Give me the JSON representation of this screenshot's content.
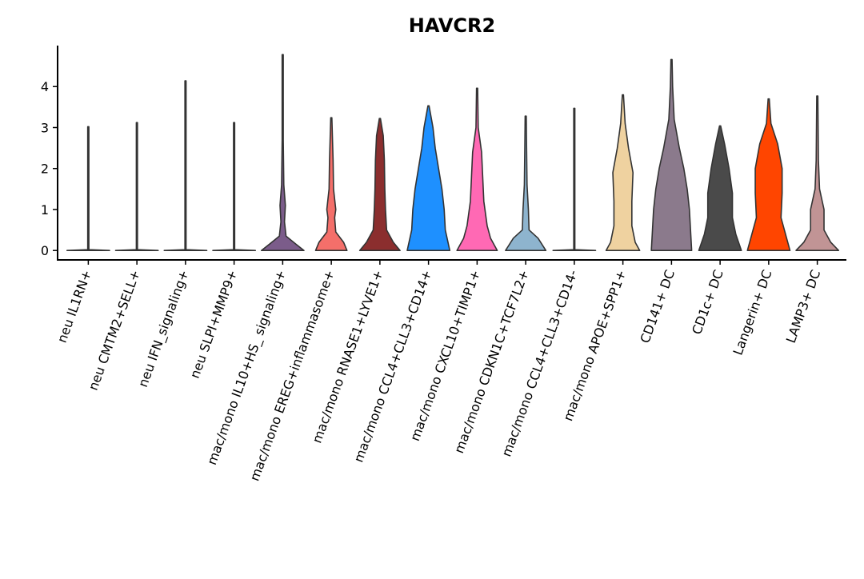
{
  "chart_data": {
    "type": "violin",
    "title": "HAVCR2",
    "ylim": [
      -0.23,
      5.0
    ],
    "yticks": [
      0,
      1,
      2,
      3,
      4
    ],
    "series": [
      {
        "name": "neu IL1RN+",
        "color": "#C8A2C8",
        "density": [
          [
            0,
            0.95
          ],
          [
            0.02,
            0.02
          ],
          [
            3.02,
            0
          ]
        ]
      },
      {
        "name": "neu CMTM2+SELL+",
        "color": "#FFE4B5",
        "density": [
          [
            0,
            0.95
          ],
          [
            0.02,
            0.02
          ],
          [
            3.12,
            0
          ]
        ]
      },
      {
        "name": "neu IFN_signaling+",
        "color": "#FFDAB9",
        "density": [
          [
            0,
            0.95
          ],
          [
            0.02,
            0.02
          ],
          [
            4.14,
            0
          ]
        ]
      },
      {
        "name": "neu SLPI+MMP9+",
        "color": "#A9A9A9",
        "density": [
          [
            0,
            0.95
          ],
          [
            0.02,
            0.02
          ],
          [
            3.12,
            0
          ]
        ]
      },
      {
        "name": "mac/mono IL10+HS_ signaling+",
        "color": "#7B5C8A",
        "density": [
          [
            0,
            0.95
          ],
          [
            0.15,
            0.6
          ],
          [
            0.35,
            0.15
          ],
          [
            0.7,
            0.08
          ],
          [
            1.1,
            0.12
          ],
          [
            1.6,
            0.05
          ],
          [
            2.7,
            0.02
          ],
          [
            4.78,
            0
          ]
        ]
      },
      {
        "name": "mac/mono EREG+inflammasome+",
        "color": "#F46F6A",
        "density": [
          [
            0,
            0.7
          ],
          [
            0.2,
            0.55
          ],
          [
            0.45,
            0.2
          ],
          [
            0.8,
            0.15
          ],
          [
            1.0,
            0.2
          ],
          [
            1.5,
            0.1
          ],
          [
            2.2,
            0.08
          ],
          [
            3.24,
            0
          ]
        ]
      },
      {
        "name": "mac/mono RNASE1+LYVE1+",
        "color": "#8B2E2E",
        "density": [
          [
            0,
            0.9
          ],
          [
            0.2,
            0.6
          ],
          [
            0.5,
            0.3
          ],
          [
            1.0,
            0.25
          ],
          [
            1.5,
            0.22
          ],
          [
            2.2,
            0.2
          ],
          [
            2.8,
            0.15
          ],
          [
            3.22,
            0
          ]
        ]
      },
      {
        "name": "mac/mono CCL4+CLL3+CD14+",
        "color": "#1E90FF",
        "density": [
          [
            0,
            0.95
          ],
          [
            0.5,
            0.75
          ],
          [
            1.0,
            0.7
          ],
          [
            1.5,
            0.6
          ],
          [
            2.0,
            0.45
          ],
          [
            2.5,
            0.3
          ],
          [
            3.0,
            0.2
          ],
          [
            3.53,
            0
          ]
        ]
      },
      {
        "name": "mac/mono CXCL10+TIMP1+",
        "color": "#FF69B4",
        "density": [
          [
            0,
            0.9
          ],
          [
            0.3,
            0.6
          ],
          [
            0.6,
            0.45
          ],
          [
            1.2,
            0.3
          ],
          [
            1.8,
            0.25
          ],
          [
            2.4,
            0.2
          ],
          [
            3.0,
            0.05
          ],
          [
            3.96,
            0
          ]
        ]
      },
      {
        "name": "mac/mono CDKN1C+TCF7L2+",
        "color": "#8EB4CE",
        "density": [
          [
            0,
            0.9
          ],
          [
            0.3,
            0.55
          ],
          [
            0.5,
            0.15
          ],
          [
            1.0,
            0.12
          ],
          [
            1.6,
            0.06
          ],
          [
            2.5,
            0.04
          ],
          [
            3.28,
            0
          ]
        ]
      },
      {
        "name": "mac/mono CCL4+CLL3+CD14-",
        "color": "#E6C47A",
        "density": [
          [
            0,
            0.95
          ],
          [
            0.02,
            0.02
          ],
          [
            3.47,
            0
          ]
        ]
      },
      {
        "name": "mac/mono APOE+SPP1+",
        "color": "#EFD2A0",
        "density": [
          [
            0,
            0.75
          ],
          [
            0.2,
            0.55
          ],
          [
            0.6,
            0.4
          ],
          [
            1.2,
            0.4
          ],
          [
            1.9,
            0.45
          ],
          [
            2.5,
            0.25
          ],
          [
            3.1,
            0.1
          ],
          [
            3.8,
            0
          ]
        ]
      },
      {
        "name": "CD141+ DC",
        "color": "#8B7A8C",
        "density": [
          [
            0,
            0.9
          ],
          [
            0.5,
            0.85
          ],
          [
            1.0,
            0.8
          ],
          [
            1.5,
            0.7
          ],
          [
            2.0,
            0.55
          ],
          [
            2.5,
            0.35
          ],
          [
            3.2,
            0.12
          ],
          [
            4.0,
            0.05
          ],
          [
            4.66,
            0
          ]
        ]
      },
      {
        "name": "CD1c+ DC",
        "color": "#4A4A4A",
        "density": [
          [
            0,
            0.95
          ],
          [
            0.4,
            0.7
          ],
          [
            0.8,
            0.55
          ],
          [
            1.4,
            0.55
          ],
          [
            2.0,
            0.4
          ],
          [
            2.6,
            0.2
          ],
          [
            3.04,
            0
          ]
        ]
      },
      {
        "name": "Langerin+ DC",
        "color": "#FF4500",
        "density": [
          [
            0,
            0.95
          ],
          [
            0.4,
            0.75
          ],
          [
            0.8,
            0.55
          ],
          [
            1.4,
            0.6
          ],
          [
            2.0,
            0.6
          ],
          [
            2.6,
            0.4
          ],
          [
            3.1,
            0.1
          ],
          [
            3.7,
            0
          ]
        ]
      },
      {
        "name": "LAMP3+ DC",
        "color": "#C19495",
        "density": [
          [
            0,
            0.95
          ],
          [
            0.2,
            0.6
          ],
          [
            0.5,
            0.3
          ],
          [
            1.0,
            0.3
          ],
          [
            1.5,
            0.1
          ],
          [
            2.2,
            0.05
          ],
          [
            3.77,
            0
          ]
        ]
      }
    ]
  }
}
